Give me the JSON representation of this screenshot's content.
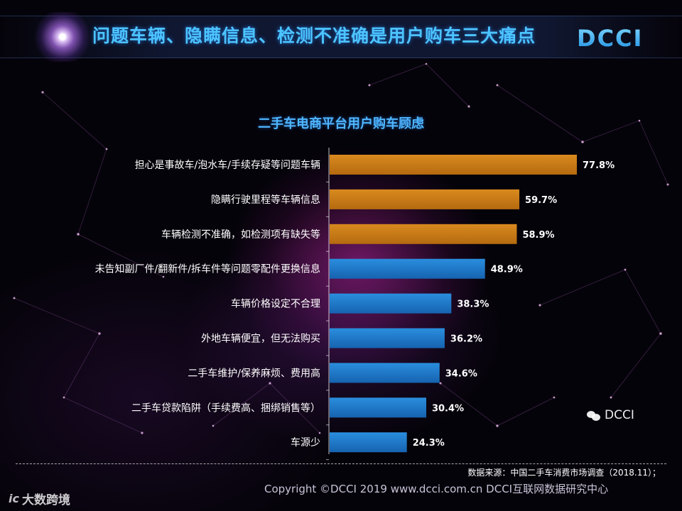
{
  "header": {
    "title": "问题车辆、隐瞒信息、检测不准确是用户购车三大痛点",
    "logo_text": "DCCI"
  },
  "chart_data": {
    "type": "bar",
    "orientation": "horizontal",
    "title": "二手车电商平台用户购车顾虑",
    "categories": [
      "担心是事故车/泡水车/手续存疑等问题车辆",
      "隐瞒行驶里程等车辆信息",
      "车辆检测不准确，如检测项有缺失等",
      "未告知副厂件/翻新件/拆车件等问题零配件更换信息",
      "车辆价格设定不合理",
      "外地车辆便宜，但无法购买",
      "二手车维护/保养麻烦、费用高",
      "二手车贷款陷阱（手续费高、捆绑销售等）",
      "车源少"
    ],
    "values": [
      77.8,
      59.7,
      58.9,
      48.9,
      38.3,
      36.2,
      34.6,
      30.4,
      24.3
    ],
    "value_labels": [
      "77.8%",
      "59.7%",
      "58.9%",
      "48.9%",
      "38.3%",
      "36.2%",
      "34.6%",
      "30.4%",
      "24.3%"
    ],
    "highlight_count": 3,
    "colors": {
      "highlight": "#d98a1e",
      "highlight_dark": "#b56a10",
      "normal": "#2a8ede",
      "normal_dark": "#1663b0"
    },
    "xlim": [
      0,
      100
    ],
    "grid": false,
    "legend": "none"
  },
  "footer": {
    "source": "数据来源：中国二手车消费市场调查（2018.11）；",
    "copyright": "Copyright ©DCCI 2019  www.dcci.com.cn   DCCI互联网数据研究中心"
  },
  "watermark": {
    "left_icon": "ic",
    "left_text": "大数跨境",
    "right_text": "DCCI",
    "right_icon": "wechat-icon"
  }
}
